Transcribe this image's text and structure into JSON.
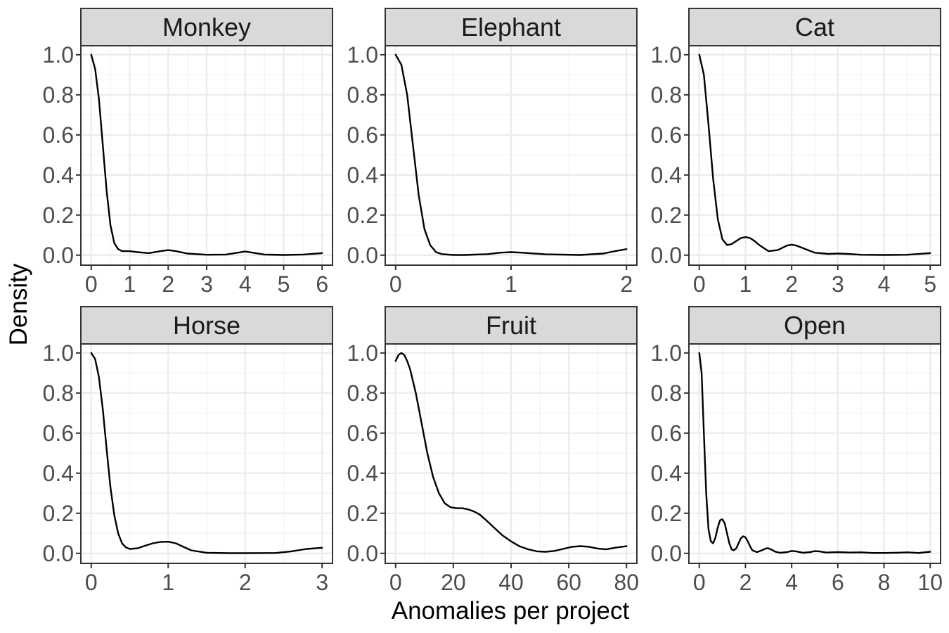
{
  "chart_data": {
    "type": "line",
    "layout": "facet-grid",
    "rows": 2,
    "cols": 3,
    "xlabel": "Anomalies per project",
    "ylabel": "Density",
    "ylim": [
      0,
      1.0
    ],
    "yticks": [
      0.0,
      0.2,
      0.4,
      0.6,
      0.8,
      1.0
    ],
    "ytick_labels": [
      "0.0",
      "0.2",
      "0.4",
      "0.6",
      "0.8",
      "1.0"
    ],
    "grid": true,
    "line_color": "#000000",
    "strip_fill": "#d9d9d9",
    "panels": [
      {
        "title": "Monkey",
        "xlim": [
          0,
          6
        ],
        "xticks": [
          0,
          1,
          2,
          3,
          4,
          5,
          6
        ],
        "xtick_labels": [
          "0",
          "1",
          "2",
          "3",
          "4",
          "5",
          "6"
        ],
        "x": [
          0,
          0.1,
          0.2,
          0.3,
          0.4,
          0.5,
          0.6,
          0.7,
          0.8,
          1.0,
          1.2,
          1.5,
          1.8,
          2.0,
          2.2,
          2.5,
          3.0,
          3.5,
          3.8,
          4.0,
          4.2,
          4.5,
          5.0,
          5.5,
          6.0
        ],
        "y": [
          1.0,
          0.93,
          0.78,
          0.55,
          0.32,
          0.15,
          0.06,
          0.03,
          0.02,
          0.02,
          0.015,
          0.01,
          0.02,
          0.025,
          0.02,
          0.008,
          0.002,
          0.003,
          0.012,
          0.018,
          0.012,
          0.003,
          0.001,
          0.003,
          0.01
        ]
      },
      {
        "title": "Elephant",
        "xlim": [
          0,
          2
        ],
        "xticks": [
          0,
          1,
          2
        ],
        "xtick_labels": [
          "0",
          "1",
          "2"
        ],
        "x": [
          0,
          0.05,
          0.1,
          0.15,
          0.2,
          0.25,
          0.3,
          0.35,
          0.4,
          0.5,
          0.6,
          0.8,
          0.9,
          1.0,
          1.1,
          1.3,
          1.6,
          1.8,
          1.9,
          2.0
        ],
        "y": [
          1.0,
          0.95,
          0.8,
          0.55,
          0.3,
          0.13,
          0.05,
          0.015,
          0.005,
          0.001,
          0.001,
          0.005,
          0.012,
          0.015,
          0.012,
          0.004,
          0.001,
          0.008,
          0.02,
          0.03
        ]
      },
      {
        "title": "Cat",
        "xlim": [
          0,
          5
        ],
        "xticks": [
          0,
          1,
          2,
          3,
          4,
          5
        ],
        "xtick_labels": [
          "0",
          "1",
          "2",
          "3",
          "4",
          "5"
        ],
        "x": [
          0,
          0.1,
          0.2,
          0.3,
          0.4,
          0.5,
          0.6,
          0.7,
          0.8,
          0.9,
          1.0,
          1.1,
          1.2,
          1.3,
          1.5,
          1.7,
          1.9,
          2.0,
          2.1,
          2.3,
          2.5,
          2.8,
          3.0,
          3.2,
          3.5,
          4.0,
          4.5,
          5.0
        ],
        "y": [
          1.0,
          0.9,
          0.65,
          0.38,
          0.18,
          0.08,
          0.05,
          0.055,
          0.07,
          0.085,
          0.09,
          0.085,
          0.07,
          0.05,
          0.02,
          0.025,
          0.048,
          0.052,
          0.048,
          0.03,
          0.012,
          0.006,
          0.008,
          0.006,
          0.002,
          0.001,
          0.002,
          0.01
        ]
      },
      {
        "title": "Horse",
        "xlim": [
          0,
          3
        ],
        "xticks": [
          0,
          1,
          2,
          3
        ],
        "xtick_labels": [
          "0",
          "1",
          "2",
          "3"
        ],
        "x": [
          0,
          0.05,
          0.1,
          0.15,
          0.2,
          0.25,
          0.3,
          0.35,
          0.4,
          0.45,
          0.5,
          0.6,
          0.7,
          0.8,
          0.9,
          1.0,
          1.1,
          1.2,
          1.3,
          1.5,
          1.8,
          2.0,
          2.4,
          2.6,
          2.8,
          3.0
        ],
        "y": [
          1.0,
          0.97,
          0.88,
          0.72,
          0.52,
          0.33,
          0.19,
          0.1,
          0.05,
          0.03,
          0.022,
          0.025,
          0.038,
          0.05,
          0.057,
          0.058,
          0.05,
          0.032,
          0.015,
          0.003,
          0.001,
          0.001,
          0.002,
          0.01,
          0.022,
          0.028
        ]
      },
      {
        "title": "Fruit",
        "xlim": [
          0,
          80
        ],
        "xticks": [
          0,
          20,
          40,
          60,
          80
        ],
        "xtick_labels": [
          "0",
          "20",
          "40",
          "60",
          "80"
        ],
        "x": [
          0,
          1,
          2,
          3,
          4,
          5,
          7,
          9,
          11,
          13,
          15,
          17,
          19,
          21,
          23,
          25,
          27,
          29,
          31,
          34,
          37,
          40,
          43,
          46,
          49,
          52,
          55,
          58,
          61,
          64,
          67,
          70,
          73,
          76,
          80
        ],
        "y": [
          0.96,
          0.99,
          1.0,
          0.99,
          0.96,
          0.92,
          0.8,
          0.65,
          0.5,
          0.38,
          0.3,
          0.25,
          0.23,
          0.225,
          0.225,
          0.22,
          0.21,
          0.195,
          0.17,
          0.13,
          0.09,
          0.06,
          0.035,
          0.02,
          0.01,
          0.008,
          0.012,
          0.022,
          0.032,
          0.036,
          0.033,
          0.024,
          0.02,
          0.028,
          0.036
        ]
      },
      {
        "title": "Open",
        "xlim": [
          0,
          10
        ],
        "xticks": [
          0,
          2,
          4,
          6,
          8,
          10
        ],
        "xtick_labels": [
          "0",
          "2",
          "4",
          "6",
          "8",
          "10"
        ],
        "x": [
          0,
          0.1,
          0.2,
          0.3,
          0.4,
          0.5,
          0.6,
          0.7,
          0.8,
          0.9,
          1.0,
          1.1,
          1.2,
          1.3,
          1.4,
          1.5,
          1.6,
          1.7,
          1.8,
          1.9,
          2.0,
          2.1,
          2.2,
          2.3,
          2.5,
          2.7,
          2.9,
          3.0,
          3.1,
          3.3,
          3.5,
          3.8,
          4.0,
          4.2,
          4.5,
          4.8,
          5.0,
          5.2,
          5.5,
          6.0,
          6.5,
          7.0,
          7.5,
          8.0,
          8.5,
          9.0,
          9.5,
          10.0
        ],
        "y": [
          1.0,
          0.9,
          0.6,
          0.3,
          0.12,
          0.06,
          0.05,
          0.08,
          0.13,
          0.165,
          0.17,
          0.15,
          0.1,
          0.05,
          0.02,
          0.015,
          0.025,
          0.05,
          0.075,
          0.085,
          0.08,
          0.06,
          0.035,
          0.015,
          0.006,
          0.015,
          0.025,
          0.025,
          0.02,
          0.008,
          0.003,
          0.006,
          0.012,
          0.01,
          0.003,
          0.006,
          0.011,
          0.01,
          0.004,
          0.006,
          0.004,
          0.005,
          0.002,
          0.002,
          0.003,
          0.005,
          0.002,
          0.008
        ]
      }
    ]
  }
}
